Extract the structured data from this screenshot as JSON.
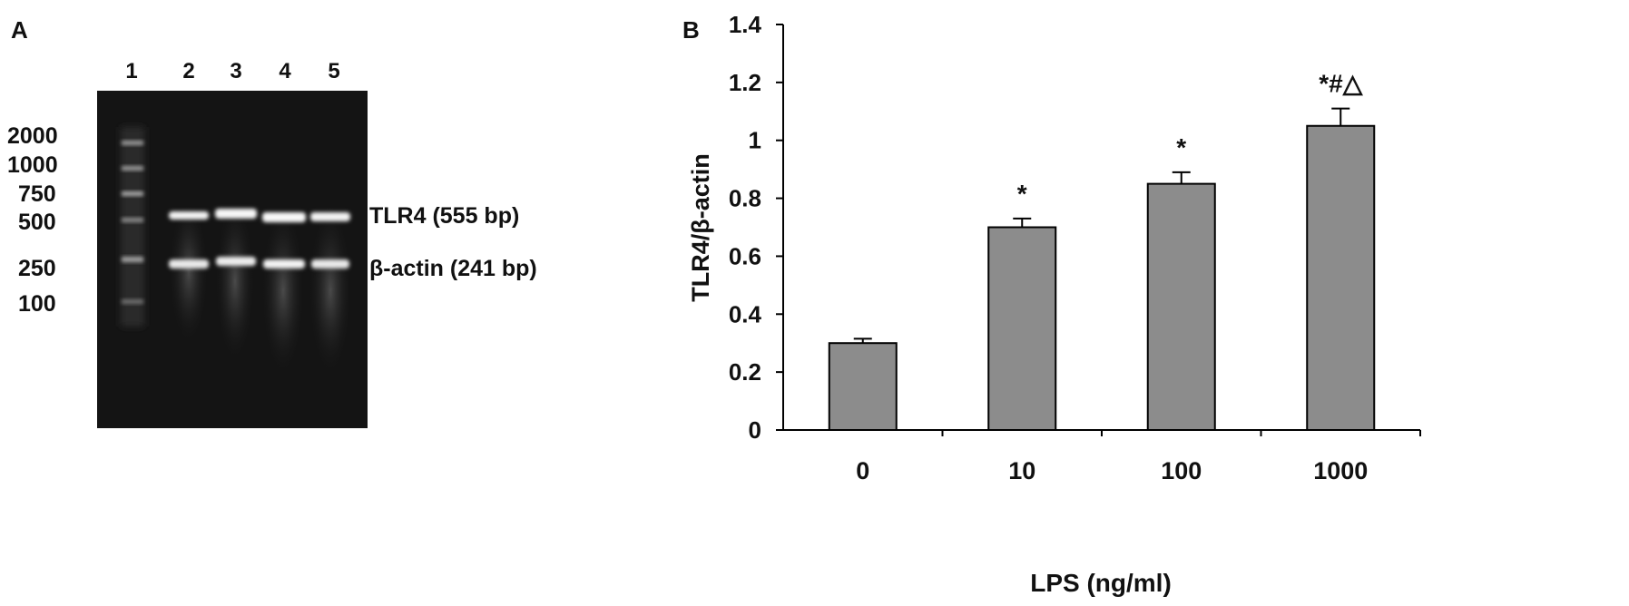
{
  "panel_a": {
    "label": "A",
    "lanes": [
      "1",
      "2",
      "3",
      "4",
      "5"
    ],
    "ladder_labels": [
      "2000",
      "1000",
      "750",
      "500",
      "250",
      "100"
    ],
    "band_labels": [
      "TLR4 (555 bp)",
      "β-actin (241 bp)"
    ],
    "colors": {
      "gel_background": "#141414",
      "band": "#f4f4f4"
    }
  },
  "panel_b": {
    "label": "B"
  },
  "chart_data": {
    "type": "bar",
    "categories": [
      "0",
      "10",
      "100",
      "1000"
    ],
    "values": [
      0.3,
      0.7,
      0.85,
      1.05
    ],
    "errors": [
      0.015,
      0.03,
      0.04,
      0.06
    ],
    "annotations": [
      "",
      "*",
      "*",
      "*#△"
    ],
    "title": "",
    "xlabel": "LPS (ng/ml)",
    "ylabel": "TLR4/β-actin",
    "ylim": [
      0,
      1.4
    ],
    "yticks": [
      "0",
      "0.2",
      "0.4",
      "0.6",
      "0.8",
      "1",
      "1.2",
      "1.4"
    ],
    "grid": false,
    "colors": {
      "bar_fill": "#8c8c8c",
      "bar_stroke": "#000000"
    }
  }
}
